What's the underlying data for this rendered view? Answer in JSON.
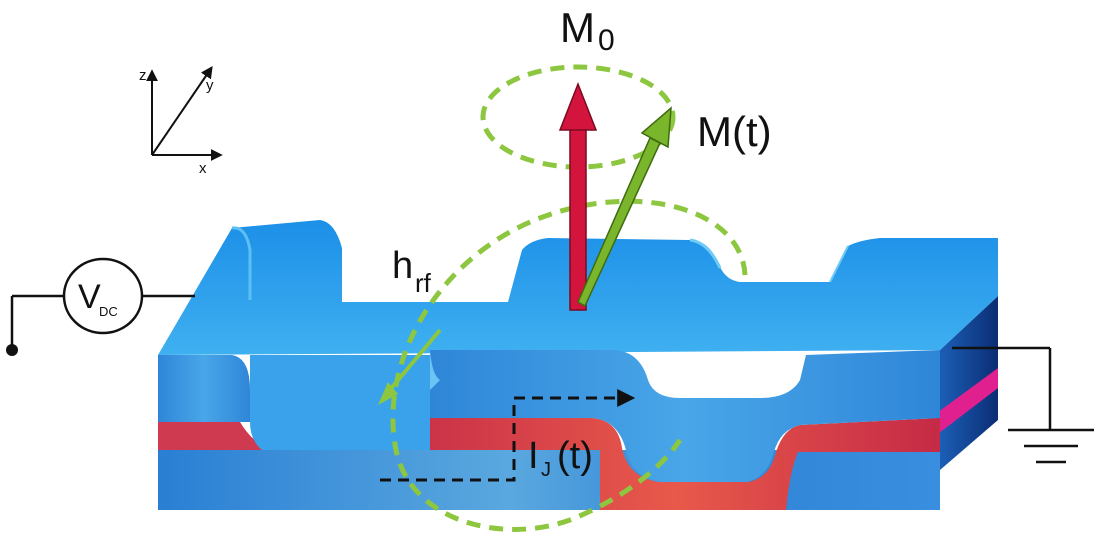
{
  "axes": {
    "z": "z",
    "y": "y",
    "x": "x"
  },
  "labels": {
    "m0_main": "M",
    "m0_sub": "0",
    "mt": "M(t)",
    "hrf_main": "h",
    "hrf_sub": "rf",
    "ij_main": "I",
    "ij_sub": "J",
    "ij_tail": "(t)",
    "vdc_main": "V",
    "vdc_sub": "DC"
  },
  "colors": {
    "blue_top": "#2f9de6",
    "blue_side": "#1e7fd6",
    "red_layer": "#d9364f",
    "magenta": "#e0208e",
    "green": "#8dc63f",
    "arrow_red": "#d3143c",
    "arrow_green": "#7ab62c",
    "wire": "#111111"
  }
}
